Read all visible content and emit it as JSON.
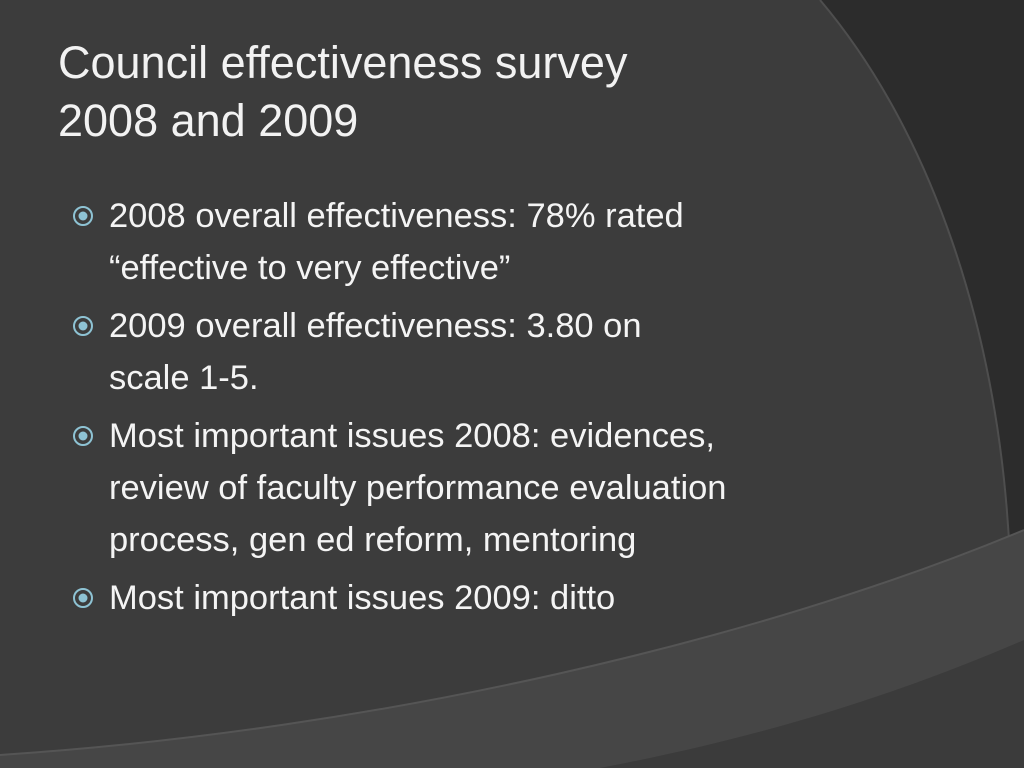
{
  "slide": {
    "title_lines": [
      "Council effectiveness survey",
      "2008 and 2009"
    ],
    "bullet_icon": "circled-dot-icon",
    "bullets": [
      {
        "lines": [
          "2008 overall effectiveness:  78% rated",
          "“effective to very effective”"
        ]
      },
      {
        "lines": [
          "2009 overall effectiveness:  3.80 on",
          "scale 1-5."
        ]
      },
      {
        "lines": [
          "Most important issues 2008:  evidences,",
          "review of faculty performance evaluation",
          "process, gen ed reform, mentoring"
        ]
      },
      {
        "lines": [
          "Most important issues 2009:  ditto"
        ]
      }
    ]
  },
  "theme": {
    "background": "#3a3a3a",
    "band_dark": "#2b2b2b",
    "band_light": "#4a4a4a",
    "text": "#f4f4f4",
    "bullet_color": "#8ec3d4"
  }
}
